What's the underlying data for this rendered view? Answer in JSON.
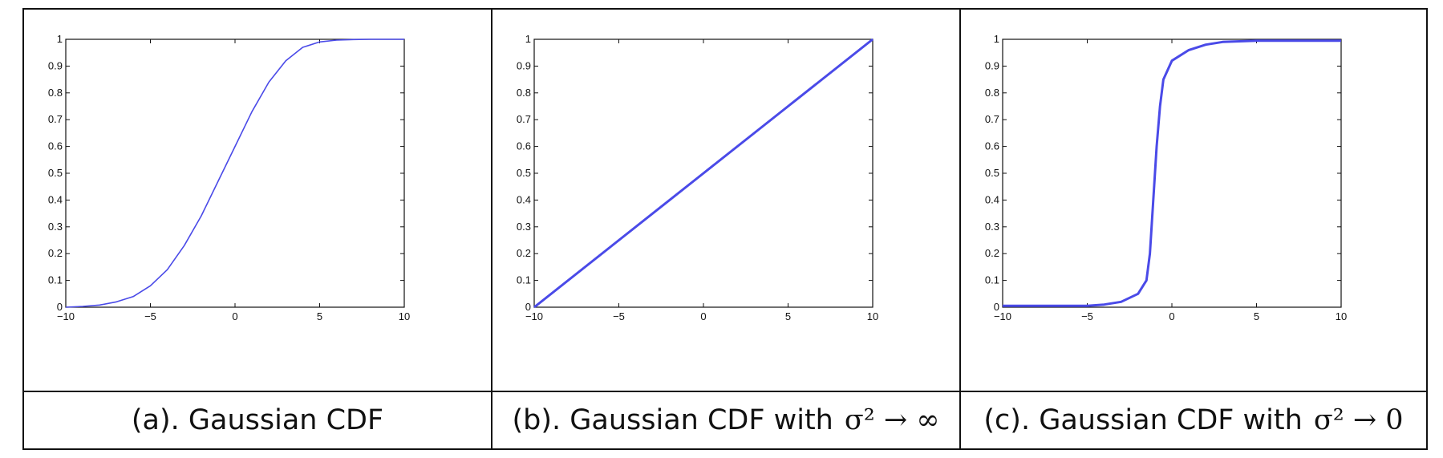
{
  "captions": [
    {
      "text": "(a). Gaussian CDF",
      "math": ""
    },
    {
      "text": "(b). Gaussian CDF with",
      "math": "σ² → ∞"
    },
    {
      "text": "(c). Gaussian CDF with",
      "math": "σ² → 0"
    }
  ],
  "line_color": "#4a4ae8",
  "chart_data": [
    {
      "type": "line",
      "title": "",
      "xlabel": "",
      "ylabel": "",
      "xlim": [
        -10,
        10
      ],
      "ylim": [
        0,
        1
      ],
      "xticks": [
        -10,
        -5,
        0,
        5,
        10
      ],
      "yticks": [
        0,
        0.1,
        0.2,
        0.3,
        0.4,
        0.5,
        0.6,
        0.7,
        0.8,
        0.9,
        1
      ],
      "xtick_labels": [
        "−10",
        "−5",
        "0",
        "5",
        "10"
      ],
      "ytick_labels": [
        "0",
        "0.1",
        "0.2",
        "0.3",
        "0.4",
        "0.5",
        "0.6",
        "0.7",
        "0.8",
        "0.9",
        "1"
      ],
      "grid": false,
      "series": [
        {
          "x": [
            -10,
            -9,
            -8,
            -7,
            -6,
            -5,
            -4,
            -3,
            -2,
            -1,
            0,
            1,
            2,
            3,
            4,
            5,
            6,
            7,
            8,
            9,
            10
          ],
          "y": [
            0.0,
            0.003,
            0.008,
            0.02,
            0.04,
            0.08,
            0.14,
            0.23,
            0.34,
            0.47,
            0.6,
            0.73,
            0.84,
            0.92,
            0.97,
            0.99,
            0.997,
            0.999,
            1.0,
            1.0,
            1.0
          ]
        }
      ]
    },
    {
      "type": "line",
      "title": "",
      "xlabel": "",
      "ylabel": "",
      "xlim": [
        -10,
        10
      ],
      "ylim": [
        0,
        1
      ],
      "xticks": [
        -10,
        -5,
        0,
        5,
        10
      ],
      "yticks": [
        0,
        0.1,
        0.2,
        0.3,
        0.4,
        0.5,
        0.6,
        0.7,
        0.8,
        0.9,
        1
      ],
      "xtick_labels": [
        "−10",
        "−5",
        "0",
        "5",
        "10"
      ],
      "ytick_labels": [
        "0",
        "0.1",
        "0.2",
        "0.3",
        "0.4",
        "0.5",
        "0.6",
        "0.7",
        "0.8",
        "0.9",
        "1"
      ],
      "grid": false,
      "series": [
        {
          "x": [
            -10,
            -5,
            0,
            5,
            10
          ],
          "y": [
            0.0,
            0.25,
            0.5,
            0.75,
            1.0
          ]
        }
      ]
    },
    {
      "type": "line",
      "title": "",
      "xlabel": "",
      "ylabel": "",
      "xlim": [
        -10,
        10
      ],
      "ylim": [
        0,
        1
      ],
      "xticks": [
        -10,
        -5,
        0,
        5,
        10
      ],
      "yticks": [
        0,
        0.1,
        0.2,
        0.3,
        0.4,
        0.5,
        0.6,
        0.7,
        0.8,
        0.9,
        1
      ],
      "xtick_labels": [
        "−10",
        "−5",
        "0",
        "5",
        "10"
      ],
      "ytick_labels": [
        "0",
        "0.1",
        "0.2",
        "0.3",
        "0.4",
        "0.5",
        "0.6",
        "0.7",
        "0.8",
        "0.9",
        "1"
      ],
      "grid": false,
      "series": [
        {
          "x": [
            -10,
            -5,
            -4,
            -3,
            -2,
            -1.5,
            -1.3,
            -1.1,
            -1.0,
            -0.9,
            -0.7,
            -0.5,
            0,
            1,
            2,
            3,
            5,
            8,
            10
          ],
          "y": [
            0.005,
            0.005,
            0.01,
            0.02,
            0.05,
            0.1,
            0.2,
            0.4,
            0.5,
            0.6,
            0.75,
            0.85,
            0.92,
            0.96,
            0.98,
            0.99,
            0.995,
            0.995,
            0.995
          ]
        }
      ]
    }
  ]
}
